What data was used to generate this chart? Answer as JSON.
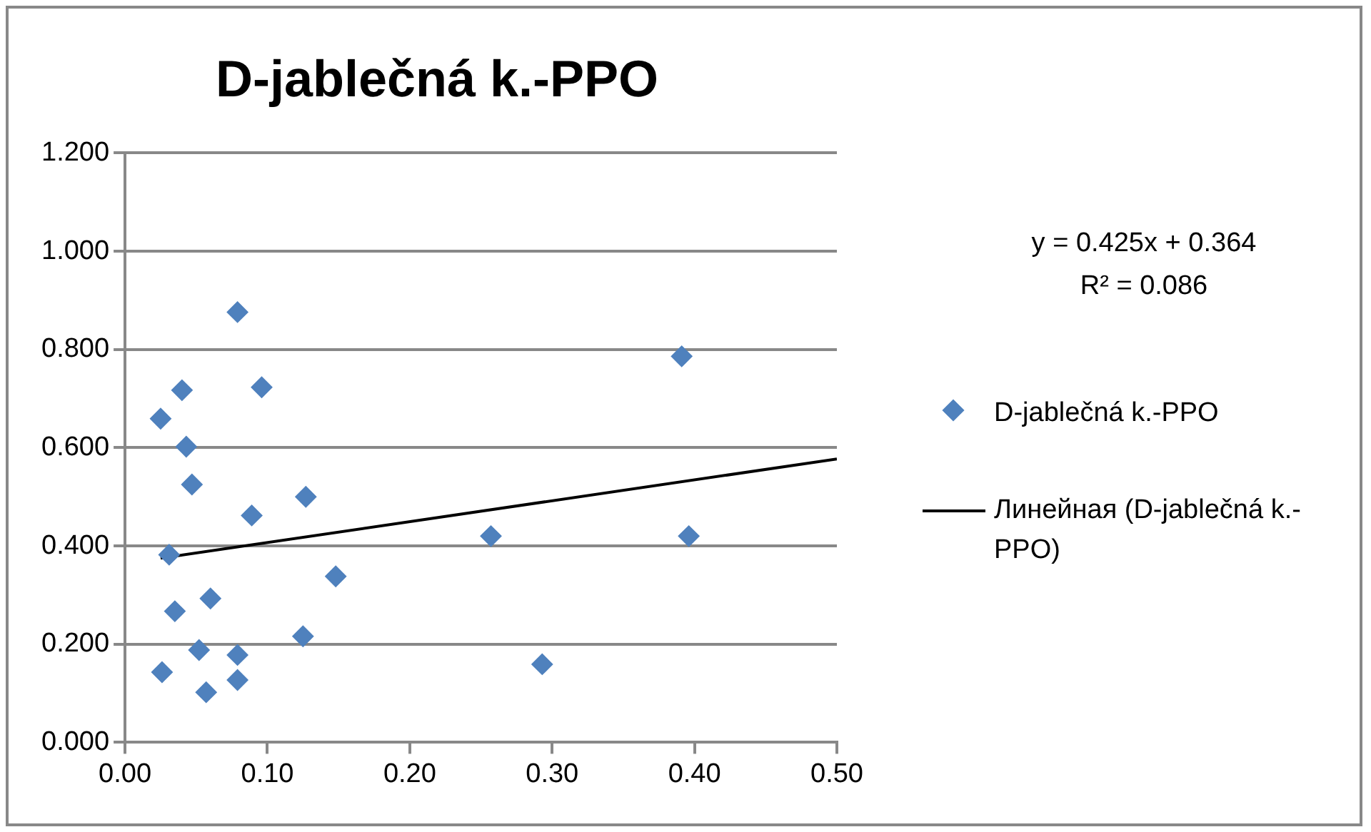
{
  "chart_data": {
    "type": "scatter",
    "title": "D-jablečná k.-PPO",
    "annotations": [
      "y = 0.425x + 0.364",
      "R² = 0.086"
    ],
    "series": [
      {
        "name": "D-jablečná k.-PPO",
        "color": "#4f81bd",
        "marker": "diamond",
        "x": [
          0.079,
          0.04,
          0.096,
          0.025,
          0.043,
          0.047,
          0.089,
          0.127,
          0.031,
          0.148,
          0.035,
          0.06,
          0.125,
          0.052,
          0.079,
          0.026,
          0.079,
          0.057,
          0.257,
          0.293,
          0.391,
          0.396
        ],
        "values": [
          0.876,
          0.717,
          0.723,
          0.659,
          0.602,
          0.525,
          0.462,
          0.5,
          0.382,
          0.338,
          0.267,
          0.293,
          0.216,
          0.188,
          0.178,
          0.143,
          0.127,
          0.102,
          0.42,
          0.159,
          0.786,
          0.42
        ]
      },
      {
        "name": "Линейная (D-jablečná k.-PPO)",
        "type": "line",
        "color": "#000000",
        "marker": "none",
        "x": [
          0.025,
          0.5
        ],
        "values": [
          0.375,
          0.577
        ]
      }
    ],
    "xlim": [
      0,
      0.5
    ],
    "xticks": [
      {
        "value": 0,
        "label": "0.00"
      },
      {
        "value": 0.1,
        "label": "0.10"
      },
      {
        "value": 0.2,
        "label": "0.20"
      },
      {
        "value": 0.3,
        "label": "0.30"
      },
      {
        "value": 0.4,
        "label": "0.40"
      },
      {
        "value": 0.5,
        "label": "0.50"
      }
    ],
    "ylim": [
      0,
      1.2
    ],
    "yticks": [
      {
        "value": 0,
        "label": "0.000"
      },
      {
        "value": 0.2,
        "label": "0.200"
      },
      {
        "value": 0.4,
        "label": "0.400"
      },
      {
        "value": 0.6,
        "label": "0.600"
      },
      {
        "value": 0.8,
        "label": "0.800"
      },
      {
        "value": 1,
        "label": "1.000"
      },
      {
        "value": 1.2,
        "label": "1.200"
      }
    ],
    "grid": "y",
    "legend": "right"
  }
}
